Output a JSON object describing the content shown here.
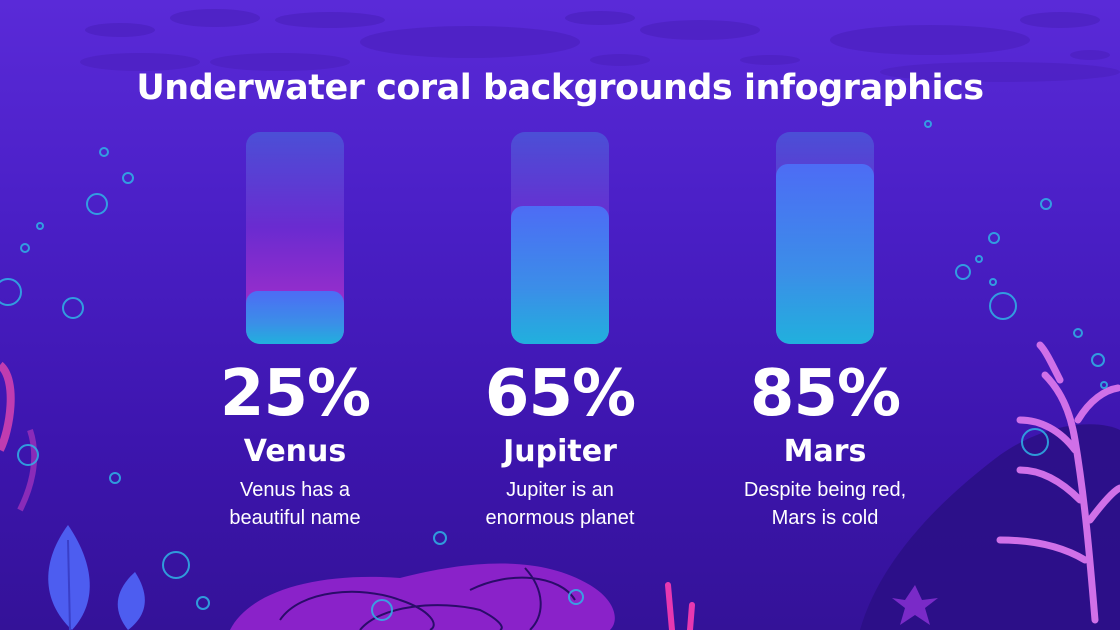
{
  "title": "Underwater coral backgrounds infographics",
  "chart_data": {
    "type": "bar",
    "categories": [
      "Venus",
      "Jupiter",
      "Mars"
    ],
    "values": [
      25,
      65,
      85
    ],
    "ylim": [
      0,
      100
    ]
  },
  "items": [
    {
      "percent": "25%",
      "name": "Venus",
      "description": "Venus has a\nbeautiful name"
    },
    {
      "percent": "65%",
      "name": "Jupiter",
      "description": "Jupiter is an\nenormous planet"
    },
    {
      "percent": "85%",
      "name": "Mars",
      "description": "Despite being red,\nMars is cold"
    }
  ],
  "colors": {
    "background_top": "#5a2ad8",
    "background_bottom": "#341298",
    "bar_fill": "#3b8ee8",
    "coral_pink": "#d070e8",
    "text": "#ffffff"
  }
}
